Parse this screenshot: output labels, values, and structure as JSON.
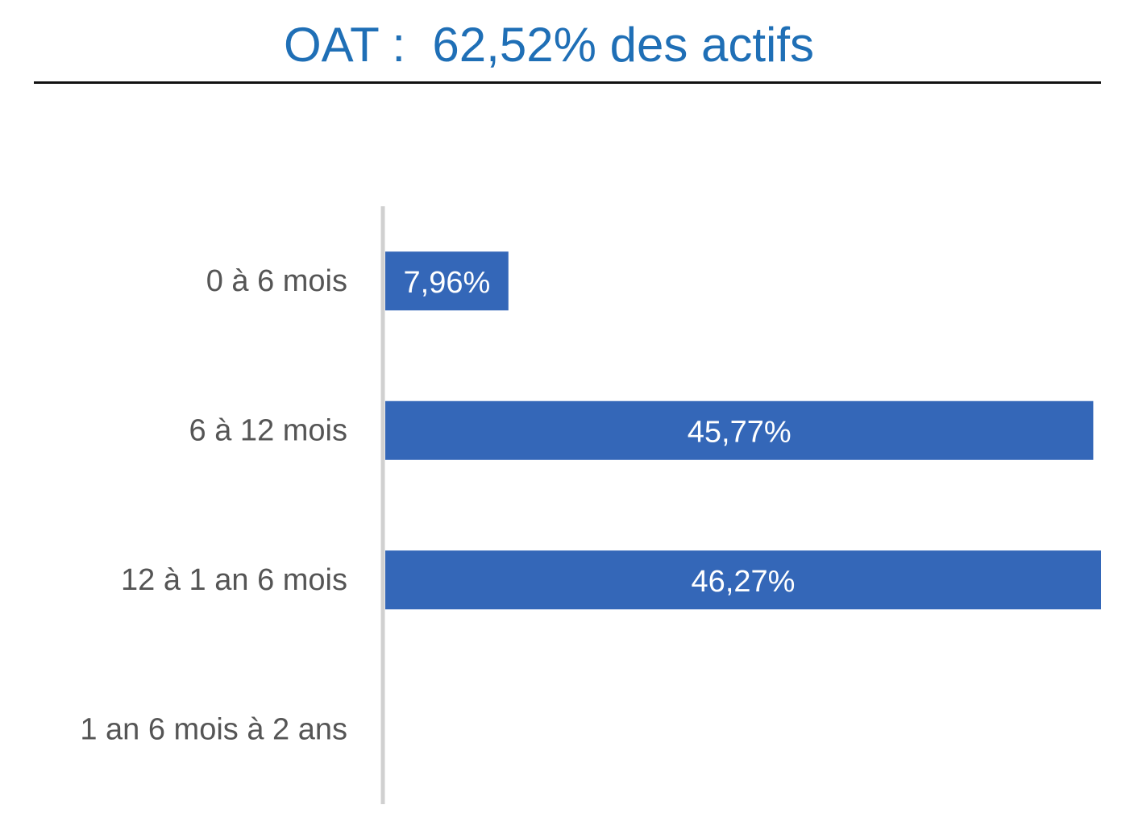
{
  "title": "OAT :  62,52% des actifs",
  "chart_data": {
    "type": "bar",
    "orientation": "horizontal",
    "title": "OAT :  62,52% des actifs",
    "categories": [
      "0 à 6 mois",
      "6 à 12 mois",
      "12 à 1 an 6 mois",
      "1 an 6 mois à 2 ans"
    ],
    "values": [
      7.96,
      45.77,
      46.27,
      null
    ],
    "data_labels": [
      "7,96%",
      "45,77%",
      "46,27%",
      ""
    ],
    "xlim": [
      0,
      46.27
    ],
    "grid": false,
    "legend": "none",
    "bar_color": "#3467b8",
    "axis_color": "#d0d0d0",
    "label_color": "#555555",
    "title_color": "#1f6fb6"
  }
}
